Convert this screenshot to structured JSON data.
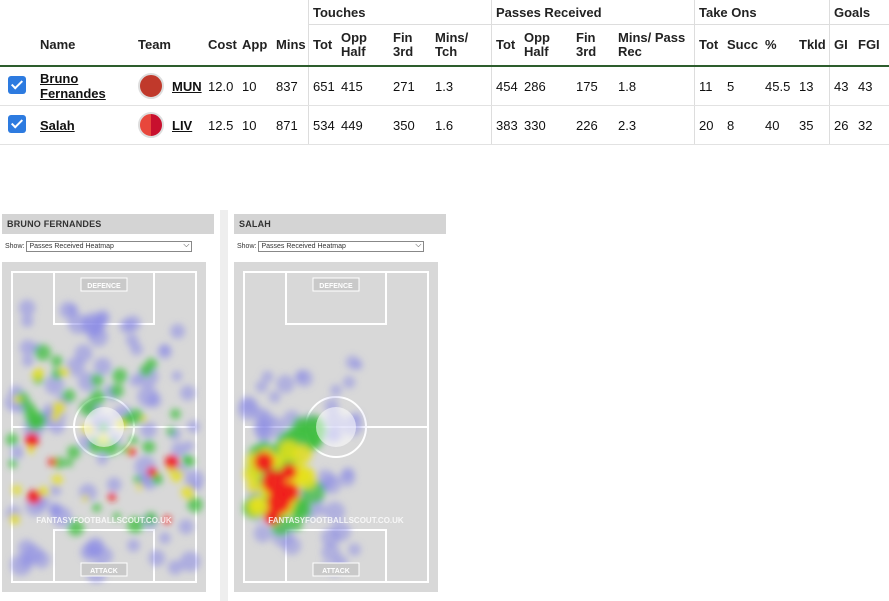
{
  "groups": {
    "touches": "Touches",
    "passes": "Passes Received",
    "takeons": "Take Ons",
    "goals": "Goals"
  },
  "columns": {
    "name": "Name",
    "team": "Team",
    "cost": "Cost",
    "app": "App",
    "mins": "Mins",
    "t_tot": "Tot",
    "t_opp": "Opp Half",
    "t_fin": "Fin 3rd",
    "t_mpt": "Mins/ Tch",
    "p_tot": "Tot",
    "p_opp": "Opp Half",
    "p_fin": "Fin 3rd",
    "p_mpr": "Mins/ Pass Rec",
    "to_tot": "Tot",
    "to_succ": "Succ",
    "to_pct": "%",
    "tkld": "Tkld",
    "gi": "GI",
    "fgi": "FGI"
  },
  "players": [
    {
      "name": "Bruno Fernandes",
      "team": "MUN",
      "team_color": "#c0392b",
      "cost": "12.0",
      "app": "10",
      "mins": "837",
      "t_tot": "651",
      "t_opp": "415",
      "t_fin": "271",
      "t_mpt": "1.3",
      "p_tot": "454",
      "p_opp": "286",
      "p_fin": "175",
      "p_mpr": "1.8",
      "to_tot": "11",
      "to_succ": "5",
      "to_pct": "45.5",
      "tkld": "13",
      "gi": "43",
      "fgi": "43"
    },
    {
      "name": "Salah",
      "team": "LIV",
      "team_color": "#d0312d",
      "cost": "12.5",
      "app": "10",
      "mins": "871",
      "t_tot": "534",
      "t_opp": "449",
      "t_fin": "350",
      "t_mpt": "1.6",
      "p_tot": "383",
      "p_opp": "330",
      "p_fin": "226",
      "p_mpr": "2.3",
      "to_tot": "20",
      "to_succ": "8",
      "to_pct": "40",
      "tkld": "35",
      "gi": "26",
      "fgi": "32"
    }
  ],
  "heatmaps": [
    {
      "title": "BRUNO FERNANDES",
      "show_label": "Show:",
      "selected": "Passes Received Heatmap",
      "defence": "DEFENCE",
      "attack": "ATTACK",
      "watermark": "FANTASYFOOTBALLSCOUT.CO.UK"
    },
    {
      "title": "SALAH",
      "show_label": "Show:",
      "selected": "Passes Received Heatmap",
      "defence": "DEFENCE",
      "attack": "ATTACK",
      "watermark": "FANTASYFOOTBALLSCOUT.CO.UK"
    }
  ]
}
